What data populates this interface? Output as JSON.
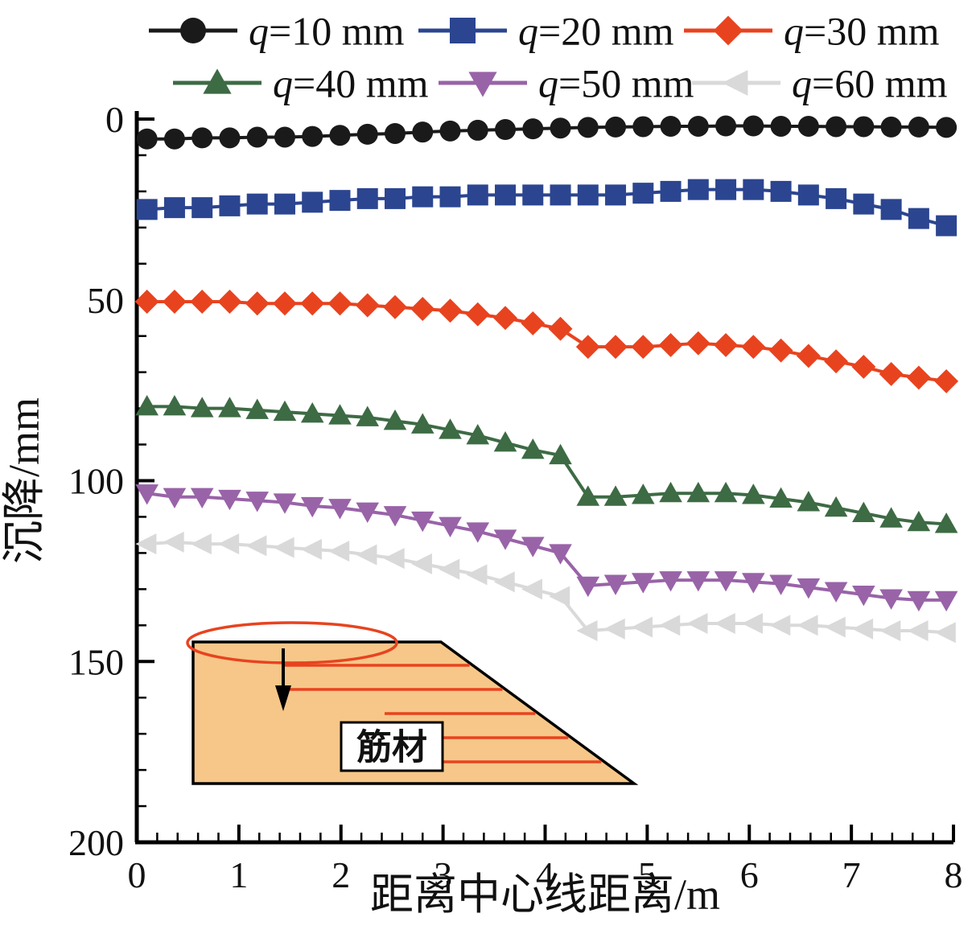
{
  "figure": {
    "background": "#ffffff",
    "axis_color": "#000000"
  },
  "chart_data": {
    "type": "line",
    "title": "",
    "xlabel": "距离中心线距离/m",
    "ylabel": "沉降/mm",
    "xlim": [
      0,
      8
    ],
    "ylim": [
      0,
      200
    ],
    "y_inverted": true,
    "grid": false,
    "legend_position": "top",
    "x_ticks": [
      0,
      1,
      2,
      3,
      4,
      5,
      6,
      7,
      8
    ],
    "y_ticks": [
      0,
      50,
      100,
      150,
      200
    ],
    "x": [
      0.1,
      0.37,
      0.64,
      0.91,
      1.18,
      1.45,
      1.72,
      1.99,
      2.26,
      2.53,
      2.8,
      3.07,
      3.34,
      3.61,
      3.88,
      4.15,
      4.42,
      4.69,
      4.96,
      5.23,
      5.5,
      5.77,
      6.04,
      6.31,
      6.58,
      6.85,
      7.12,
      7.39,
      7.66,
      7.93
    ],
    "series": [
      {
        "name": "q=10 mm",
        "marker": "circle",
        "color": "#1a1a1a",
        "values": [
          5.5,
          5.5,
          5.2,
          5.2,
          5.0,
          5.0,
          4.8,
          4.5,
          4.2,
          4.0,
          3.6,
          3.3,
          3.1,
          2.9,
          2.7,
          2.5,
          2.3,
          2.2,
          2.1,
          2.0,
          2.0,
          1.9,
          1.9,
          2.0,
          2.0,
          2.1,
          2.1,
          2.2,
          2.2,
          2.3
        ]
      },
      {
        "name": "q=20 mm",
        "marker": "square",
        "color": "#2b4590",
        "values": [
          25.0,
          24.5,
          24.5,
          24.0,
          23.5,
          23.5,
          23.0,
          22.5,
          22.0,
          22.0,
          21.5,
          21.5,
          21.0,
          21.0,
          21.0,
          21.0,
          21.0,
          21.0,
          20.5,
          20.0,
          19.5,
          19.5,
          19.5,
          20.0,
          21.0,
          22.0,
          23.5,
          25.0,
          27.5,
          29.5
        ]
      },
      {
        "name": "q=30 mm",
        "marker": "diamond",
        "color": "#e8431f",
        "values": [
          50.5,
          50.5,
          50.5,
          50.5,
          51.0,
          51.0,
          51.0,
          51.0,
          51.5,
          52.0,
          52.5,
          53.0,
          54.0,
          55.0,
          56.5,
          58.0,
          63.0,
          63.0,
          63.0,
          62.5,
          62.0,
          62.5,
          63.0,
          64.0,
          65.5,
          67.0,
          68.5,
          70.5,
          71.5,
          72.5
        ]
      },
      {
        "name": "q=40 mm",
        "marker": "triangle-up",
        "color": "#3d6b44",
        "values": [
          79.5,
          79.5,
          80.0,
          80.0,
          80.5,
          81.0,
          81.5,
          82.0,
          82.5,
          83.5,
          84.5,
          86.0,
          87.5,
          89.5,
          91.5,
          93.0,
          104.5,
          104.5,
          104.0,
          103.5,
          103.5,
          103.5,
          104.0,
          105.0,
          106.0,
          107.5,
          109.0,
          110.5,
          111.5,
          112.0
        ]
      },
      {
        "name": "q=50 mm",
        "marker": "triangle-down",
        "color": "#9963a8",
        "values": [
          103.5,
          104.5,
          104.5,
          105.0,
          105.5,
          106.0,
          107.0,
          107.5,
          108.5,
          109.5,
          111.0,
          112.5,
          114.0,
          116.0,
          118.0,
          120.0,
          129.0,
          128.5,
          128.0,
          127.5,
          127.5,
          127.5,
          128.0,
          128.5,
          129.5,
          130.5,
          131.5,
          132.5,
          133.0,
          133.0
        ]
      },
      {
        "name": "q=60 mm",
        "marker": "triangle-left",
        "color": "#d9d9d9",
        "values": [
          117.5,
          117.0,
          117.5,
          117.5,
          118.0,
          118.5,
          119.0,
          119.5,
          120.5,
          121.5,
          123.0,
          124.5,
          126.0,
          128.0,
          130.0,
          132.0,
          141.5,
          141.0,
          140.5,
          140.0,
          139.5,
          139.5,
          139.5,
          140.0,
          140.0,
          140.5,
          141.0,
          141.5,
          141.5,
          142.0
        ]
      }
    ],
    "inset": {
      "label": "筋材",
      "fill_color": "#f6c789",
      "line_color": "#e8431f",
      "outline_color": "#000000"
    }
  }
}
